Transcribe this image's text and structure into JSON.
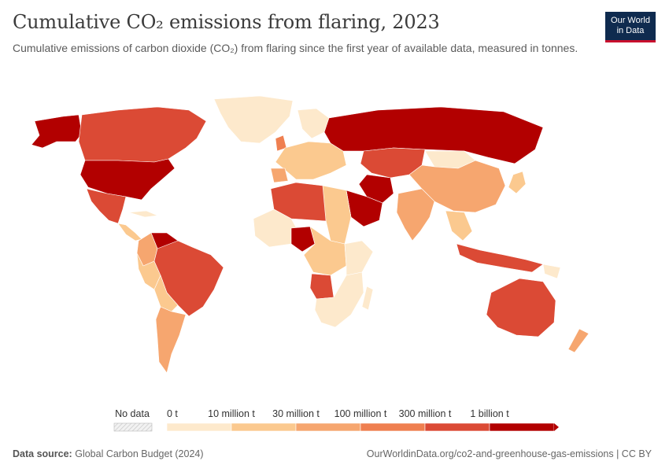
{
  "header": {
    "title": "Cumulative CO₂ emissions from flaring, 2023",
    "subtitle": "Cumulative emissions of carbon dioxide (CO₂) from flaring since the first year of available data, measured in tonnes."
  },
  "logo": {
    "line1": "Our World",
    "line2": "in Data"
  },
  "legend": {
    "no_data_label": "No data",
    "bins": [
      {
        "label": "0 t",
        "color": "#fde9cc"
      },
      {
        "label": "10 million t",
        "color": "#fbc98f"
      },
      {
        "label": "30 million t",
        "color": "#f6a66f"
      },
      {
        "label": "100 million t",
        "color": "#ef7f50"
      },
      {
        "label": "300 million t",
        "color": "#db4a35"
      },
      {
        "label": "1 billion t",
        "color": "#b20000"
      }
    ]
  },
  "colors": {
    "c0": "#fde9cc",
    "c1": "#fbc98f",
    "c2": "#f6a66f",
    "c3": "#ef7f50",
    "c4": "#db4a35",
    "c5": "#b20000",
    "nodata": "#e9e9e9"
  },
  "footer": {
    "source_label": "Data source:",
    "source_value": "Global Carbon Budget (2024)",
    "url": "OurWorldinData.org/co2-and-greenhouse-gas-emissions | CC BY"
  }
}
